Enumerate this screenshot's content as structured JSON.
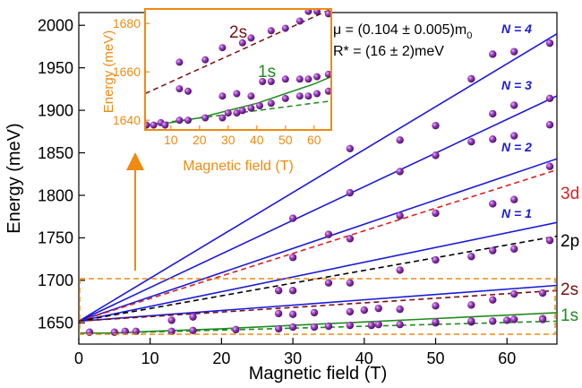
{
  "chart_data": {
    "type": "scatter",
    "xlabel": "Magnetic field (T)",
    "ylabel": "Energy (meV)",
    "xlim": [
      0,
      67
    ],
    "ylim": [
      1625,
      2015
    ],
    "xticks": [
      0,
      10,
      20,
      30,
      40,
      50,
      60
    ],
    "yticks": [
      1650,
      1700,
      1750,
      1800,
      1850,
      1900,
      1950,
      2000
    ],
    "colors": {
      "landau": "#1a1adb",
      "s1": "#1e8c1e",
      "s2": "#7a1010",
      "p2": "#000000",
      "d3": "#e02020",
      "marker": "#8a2aa8",
      "orange": "#f08a10"
    },
    "annotations": {
      "mu": "μ = (0.104 ± 0.005)m",
      "mu_sub": "0",
      "rstar": "R* = (16 ± 2)meV"
    },
    "series": [
      {
        "name": "N = 4",
        "kind": "line",
        "color": "#1a1adb",
        "x": [
          0,
          67
        ],
        "y": [
          1652,
          1990
        ]
      },
      {
        "name": "N = 3",
        "kind": "line",
        "color": "#1a1adb",
        "x": [
          0,
          67
        ],
        "y": [
          1652,
          1917
        ]
      },
      {
        "name": "N = 2",
        "kind": "line",
        "color": "#1a1adb",
        "x": [
          0,
          67
        ],
        "y": [
          1652,
          1843
        ]
      },
      {
        "name": "N = 1",
        "kind": "line",
        "color": "#1a1adb",
        "x": [
          0,
          67
        ],
        "y": [
          1652,
          1768
        ]
      },
      {
        "name": "",
        "kind": "line",
        "color": "#1a1adb",
        "x": [
          0,
          67
        ],
        "y": [
          1652,
          1694
        ]
      },
      {
        "name": "3d",
        "kind": "dashed",
        "color": "#e02020",
        "x": [
          0,
          67
        ],
        "y": [
          1652,
          1830
        ]
      },
      {
        "name": "2p",
        "kind": "dashed",
        "color": "#000000",
        "x": [
          0,
          67
        ],
        "y": [
          1652,
          1752
        ]
      },
      {
        "name": "2s",
        "kind": "dashed",
        "color": "#7a1010",
        "x": [
          0,
          67
        ],
        "y": [
          1652,
          1688
        ]
      },
      {
        "name": "1s",
        "kind": "line",
        "color": "#1e8c1e",
        "x": [
          0,
          5,
          10,
          20,
          30,
          40,
          50,
          60,
          67
        ],
        "y": [
          1638,
          1638,
          1640,
          1643,
          1647,
          1651,
          1655,
          1659,
          1662
        ]
      },
      {
        "name": "",
        "kind": "dashed",
        "color": "#1e8c1e",
        "x": [
          0,
          67
        ],
        "y": [
          1637,
          1652
        ]
      },
      {
        "name": "",
        "kind": "points",
        "x": [
          1.5,
          5,
          6.5,
          8,
          13,
          16,
          22,
          28,
          30,
          33,
          35,
          38,
          41,
          42,
          45,
          50,
          50,
          55,
          55,
          58,
          60,
          61,
          65,
          65,
          13,
          16,
          28,
          30,
          33,
          38,
          40,
          42,
          45,
          50,
          55,
          58,
          61,
          65,
          28,
          30,
          35,
          38,
          45,
          50,
          55,
          58,
          61,
          66,
          30,
          35,
          38,
          45,
          50,
          58,
          61,
          66,
          30,
          38,
          45,
          50,
          55,
          58,
          61,
          66,
          38,
          45,
          50,
          58,
          61,
          66,
          55,
          58,
          61,
          66
        ],
        "y": [
          1639,
          1639,
          1640,
          1640,
          1640,
          1641,
          1642,
          1643,
          1645,
          1645,
          1646,
          1647,
          1647,
          1648,
          1648,
          1650,
          1651,
          1651,
          1652,
          1652,
          1653,
          1654,
          1655,
          1654,
          1653,
          1657,
          1661,
          1660,
          1662,
          1663,
          1665,
          1667,
          1666,
          1670,
          1671,
          1677,
          1684,
          1685,
          1688,
          1688,
          1697,
          1697,
          1712,
          1724,
          1728,
          1735,
          1737,
          1747,
          1727,
          1754,
          1749,
          1776,
          1779,
          1790,
          1795,
          1834,
          1773,
          1803,
          1828,
          1847,
          1863,
          1866,
          1870,
          1883,
          1855,
          1865,
          1882,
          1896,
          1906,
          1914,
          1937,
          1966,
          1969,
          1979
        ]
      }
    ],
    "labels": {
      "N4": "N = 4",
      "N3": "N = 3",
      "N2": "N = 2",
      "N1": "N = 1",
      "d3": "3d",
      "p2": "2p",
      "s2": "2s",
      "s1": "1s"
    },
    "inset": {
      "xlabel": "Magnetic field (T)",
      "ylabel": "Energy (meV)",
      "xlim": [
        1,
        66
      ],
      "ylim": [
        1636,
        1686
      ],
      "xticks": [
        10,
        20,
        30,
        40,
        50,
        60
      ],
      "yticks": [
        1640,
        1660,
        1680
      ],
      "labels": {
        "s2": "2s",
        "s1": "1s"
      },
      "series": [
        {
          "name": "2s",
          "kind": "dashed",
          "color": "#7a1010",
          "x": [
            1,
            66
          ],
          "y": [
            1651,
            1686
          ]
        },
        {
          "name": "1s",
          "kind": "line",
          "color": "#1e8c1e",
          "x": [
            1,
            10,
            20,
            30,
            40,
            50,
            60,
            66
          ],
          "y": [
            1638,
            1639,
            1641,
            1644,
            1647,
            1651,
            1655,
            1658
          ]
        },
        {
          "name": "",
          "kind": "dashed",
          "color": "#1e8c1e",
          "x": [
            1,
            66
          ],
          "y": [
            1638,
            1648
          ]
        },
        {
          "name": "",
          "kind": "points",
          "x": [
            1.5,
            4,
            6.5,
            8,
            13,
            16,
            22,
            28,
            30,
            33,
            35,
            38,
            41,
            45,
            50,
            55,
            58,
            61,
            65,
            13,
            16,
            28,
            33,
            38,
            42,
            45,
            50,
            55,
            58,
            61,
            65,
            13,
            22,
            28,
            35,
            38,
            45,
            50,
            55,
            58,
            61,
            65
          ],
          "y": [
            1638,
            1638,
            1639,
            1638,
            1640,
            1640,
            1641,
            1641,
            1643,
            1643,
            1644,
            1645,
            1646,
            1647,
            1649,
            1650,
            1650,
            1651,
            1652,
            1653,
            1652,
            1650,
            1651,
            1650,
            1656,
            1656,
            1657,
            1657,
            1657,
            1658,
            1659,
            1664,
            1665,
            1670,
            1672,
            1674,
            1677,
            1678,
            1681,
            1685,
            1685,
            1684
          ]
        }
      ]
    }
  }
}
